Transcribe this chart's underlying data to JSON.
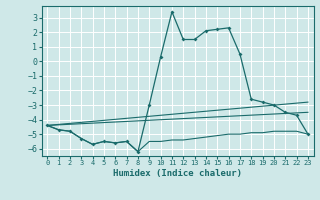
{
  "xlabel": "Humidex (Indice chaleur)",
  "bg_color": "#cfe8e8",
  "line_color": "#1a6b6b",
  "grid_color": "#ffffff",
  "xlim": [
    -0.5,
    23.5
  ],
  "ylim": [
    -6.5,
    3.8
  ],
  "yticks": [
    -6,
    -5,
    -4,
    -3,
    -2,
    -1,
    0,
    1,
    2,
    3
  ],
  "xticks": [
    0,
    1,
    2,
    3,
    4,
    5,
    6,
    7,
    8,
    9,
    10,
    11,
    12,
    13,
    14,
    15,
    16,
    17,
    18,
    19,
    20,
    21,
    22,
    23
  ],
  "series1_x": [
    0,
    1,
    2,
    3,
    4,
    5,
    6,
    7,
    8,
    9,
    10,
    11,
    12,
    13,
    14,
    15,
    16,
    17,
    18,
    19,
    20,
    21,
    22,
    23
  ],
  "series1_y": [
    -4.4,
    -4.7,
    -4.8,
    -5.3,
    -5.7,
    -5.5,
    -5.6,
    -5.5,
    -6.2,
    -3.0,
    0.3,
    3.4,
    1.5,
    1.5,
    2.1,
    2.2,
    2.3,
    0.5,
    -2.6,
    -2.8,
    -3.0,
    -3.5,
    -3.7,
    -5.0
  ],
  "series2_x": [
    0,
    1,
    2,
    3,
    4,
    5,
    6,
    7,
    8,
    9,
    10,
    11,
    12,
    13,
    14,
    15,
    16,
    17,
    18,
    19,
    20,
    21,
    22,
    23
  ],
  "series2_y": [
    -4.4,
    -4.7,
    -4.8,
    -5.3,
    -5.7,
    -5.5,
    -5.6,
    -5.5,
    -6.2,
    -5.5,
    -5.5,
    -5.4,
    -5.4,
    -5.3,
    -5.2,
    -5.1,
    -5.0,
    -5.0,
    -4.9,
    -4.9,
    -4.8,
    -4.8,
    -4.8,
    -5.0
  ],
  "series3_x": [
    0,
    23
  ],
  "series3_y": [
    -4.4,
    -2.8
  ],
  "series4_x": [
    0,
    23
  ],
  "series4_y": [
    -4.4,
    -3.5
  ]
}
